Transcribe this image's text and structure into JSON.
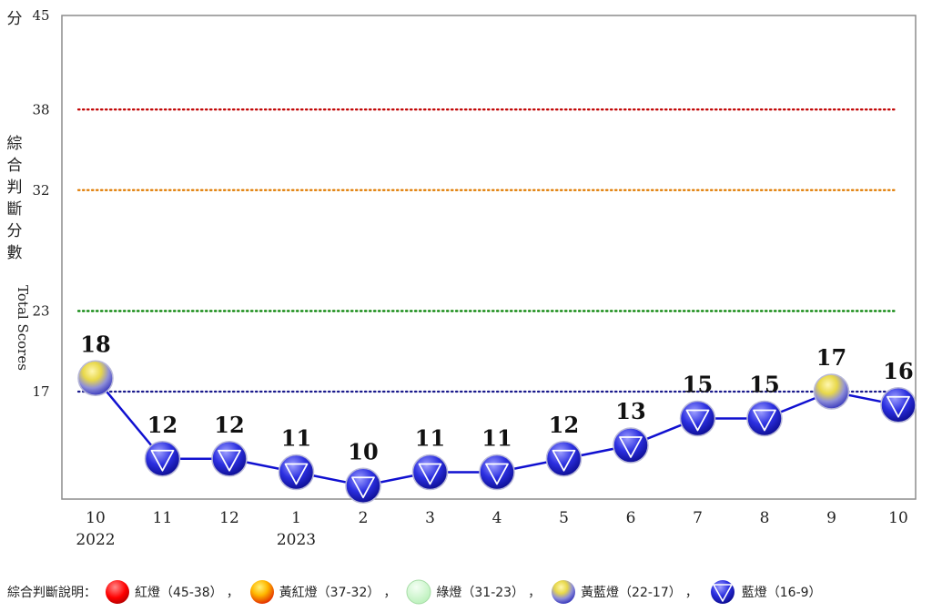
{
  "chart_data": {
    "type": "line",
    "ylabel_cn": [
      "分",
      "綜",
      "合",
      "判",
      "斷",
      "分",
      "數"
    ],
    "ylabel_en": "Total Scores",
    "yticks": [
      45,
      38,
      32,
      23,
      17
    ],
    "ylim": [
      9,
      45
    ],
    "categories": [
      "10",
      "11",
      "12",
      "1",
      "2",
      "3",
      "4",
      "5",
      "6",
      "7",
      "8",
      "9",
      "10"
    ],
    "year_labels": [
      {
        "index": 0,
        "text": "2022"
      },
      {
        "index": 3,
        "text": "2023"
      }
    ],
    "values": [
      18,
      12,
      12,
      11,
      10,
      11,
      11,
      12,
      13,
      15,
      15,
      17,
      16
    ],
    "signals": [
      "yellow-blue",
      "blue",
      "blue",
      "blue",
      "blue",
      "blue",
      "blue",
      "blue",
      "blue",
      "blue",
      "blue",
      "yellow-blue",
      "blue"
    ],
    "thresholds": [
      {
        "value": 38,
        "color": "#c00000"
      },
      {
        "value": 32,
        "color": "#e07b00"
      },
      {
        "value": 23,
        "color": "#008000"
      },
      {
        "value": 17,
        "color": "#1a1a8c"
      }
    ],
    "line_color": "#1010d0",
    "grid": false
  },
  "legend": {
    "title": "綜合判斷說明：",
    "items": [
      {
        "icon": "red-light-icon",
        "label": "紅燈（45-38）",
        "sep": "，"
      },
      {
        "icon": "yellow-red-light-icon",
        "label": "黃紅燈（37-32）",
        "sep": "，"
      },
      {
        "icon": "green-light-icon",
        "label": "綠燈（31-23）",
        "sep": "，"
      },
      {
        "icon": "yellow-blue-light-icon",
        "label": "黃藍燈（22-17）",
        "sep": "，"
      },
      {
        "icon": "blue-light-icon",
        "label": "藍燈（16-9）",
        "sep": ""
      }
    ]
  }
}
